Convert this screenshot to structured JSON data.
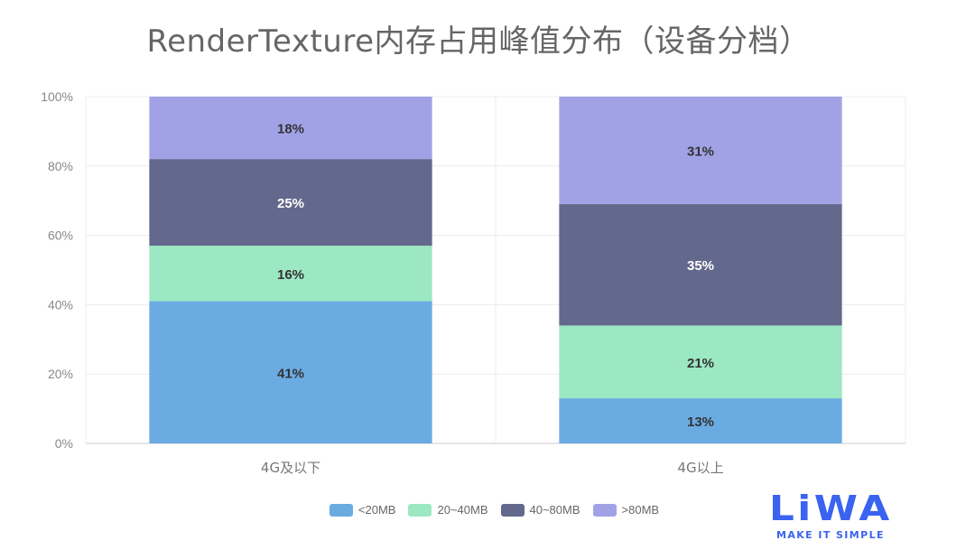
{
  "chart_data": {
    "type": "bar",
    "stacked": true,
    "title": "RenderTexture内存占用峰值分布（设备分档）",
    "xlabel": "",
    "ylabel": "",
    "categories": [
      "4G及以下",
      "4G以上"
    ],
    "series": [
      {
        "name": "<20MB",
        "values": [
          41,
          13
        ],
        "labels": [
          "41%",
          "13%"
        ],
        "color": "#6aabe2",
        "label_color": "#333333"
      },
      {
        "name": "20~40MB",
        "values": [
          16,
          21
        ],
        "labels": [
          "16%",
          "21%"
        ],
        "color": "#9ce8c2",
        "label_color": "#333333"
      },
      {
        "name": "40~80MB",
        "values": [
          25,
          35
        ],
        "labels": [
          "25%",
          "35%"
        ],
        "color": "#63698c",
        "label_color": "#ffffff"
      },
      {
        "name": ">80MB",
        "values": [
          18,
          31
        ],
        "labels": [
          "18%",
          "31%"
        ],
        "color": "#a1a2e6",
        "label_color": "#333333"
      }
    ],
    "ylim": [
      0,
      100
    ],
    "yticks": [
      "0%",
      "20%",
      "40%",
      "60%",
      "80%",
      "100%"
    ],
    "grid": true,
    "legend": "bottom"
  },
  "logo": {
    "word": "LiWA",
    "tagline": "MAKE IT SIMPLE"
  }
}
